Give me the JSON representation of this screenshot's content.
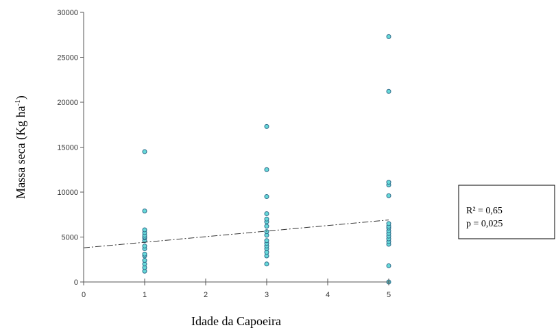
{
  "chart_data": {
    "type": "scatter",
    "title": "",
    "xlabel": "Idade da Capoeira",
    "ylabel": {
      "main": "Massa seca (Kg ha",
      "exponent": "-1",
      "close": ")"
    },
    "xlim": [
      0,
      5
    ],
    "ylim": [
      0,
      30000
    ],
    "x_ticks": [
      0,
      1,
      2,
      3,
      4,
      5
    ],
    "y_ticks": [
      0,
      5000,
      10000,
      15000,
      20000,
      25000,
      30000
    ],
    "grid": false,
    "legend": "none",
    "points": [
      [
        1,
        1200
      ],
      [
        1,
        1600
      ],
      [
        1,
        2000
      ],
      [
        1,
        2400
      ],
      [
        1,
        2900
      ],
      [
        1,
        3100
      ],
      [
        1,
        3700
      ],
      [
        1,
        4000
      ],
      [
        1,
        4600
      ],
      [
        1,
        4900
      ],
      [
        1,
        5000
      ],
      [
        1,
        5200
      ],
      [
        1,
        5500
      ],
      [
        1,
        5800
      ],
      [
        1,
        7900
      ],
      [
        1,
        14500
      ],
      [
        3,
        2000
      ],
      [
        3,
        2900
      ],
      [
        3,
        3300
      ],
      [
        3,
        3700
      ],
      [
        3,
        4000
      ],
      [
        3,
        4300
      ],
      [
        3,
        4600
      ],
      [
        3,
        5200
      ],
      [
        3,
        5600
      ],
      [
        3,
        6200
      ],
      [
        3,
        6700
      ],
      [
        3,
        7000
      ],
      [
        3,
        7600
      ],
      [
        3,
        9500
      ],
      [
        3,
        12500
      ],
      [
        3,
        17300
      ],
      [
        5,
        0
      ],
      [
        5,
        1800
      ],
      [
        5,
        4200
      ],
      [
        5,
        4500
      ],
      [
        5,
        4800
      ],
      [
        5,
        5100
      ],
      [
        5,
        5400
      ],
      [
        5,
        5700
      ],
      [
        5,
        6000
      ],
      [
        5,
        6200
      ],
      [
        5,
        6500
      ],
      [
        5,
        9600
      ],
      [
        5,
        10800
      ],
      [
        5,
        11100
      ],
      [
        5,
        21200
      ],
      [
        5,
        27300
      ]
    ],
    "trendline": {
      "x": [
        0,
        5
      ],
      "y": [
        3800,
        6900
      ],
      "style": "dash-dot"
    },
    "annotation": [
      "R² = 0,65",
      "p = 0,025"
    ],
    "colors": {
      "marker_fill": "#66d9d9",
      "marker_stroke": "#2e6b8a",
      "axis": "#555555",
      "trend": "#333333"
    }
  }
}
